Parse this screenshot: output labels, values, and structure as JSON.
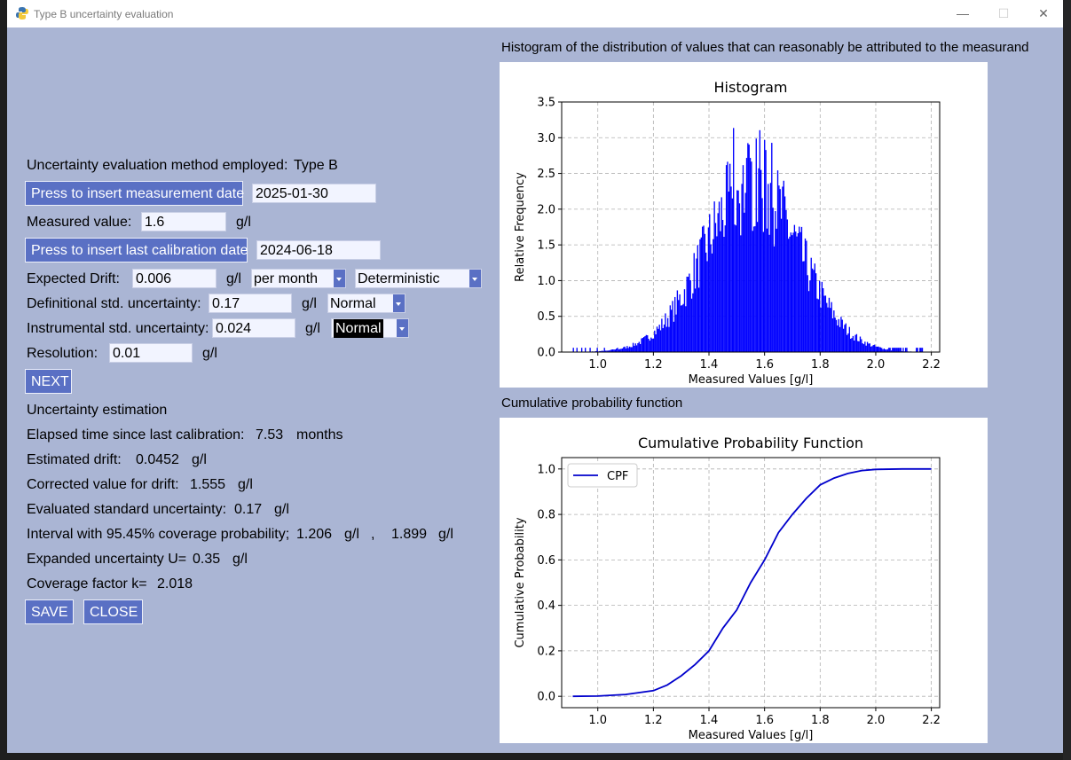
{
  "window": {
    "title": "Type B uncertainty evaluation",
    "minimize": "—",
    "maximize": "☐",
    "close": "✕"
  },
  "form": {
    "method_label": "Uncertainty evaluation method employed:",
    "method_value": "Type B",
    "meas_date_button": "Press to insert measurement date",
    "meas_date": "2025-01-30",
    "measured_value_label": "Measured value:",
    "measured_value": "1.6",
    "measured_unit": "g/l",
    "cal_date_button": "Press to insert last calibration date",
    "cal_date": "2024-06-18",
    "drift_label": "Expected Drift:",
    "drift_value": "0.006",
    "drift_unit": "g/l",
    "drift_period": "per month",
    "drift_type": "Deterministic",
    "def_label": "Definitional std. uncertainty:",
    "def_value": "0.17",
    "def_unit": "g/l",
    "def_dist": "Normal",
    "inst_label": "Instrumental std. uncertainty:",
    "inst_value": "0.024",
    "inst_unit": "g/l",
    "inst_dist": "Normal",
    "res_label": "Resolution:",
    "res_value": "0.01",
    "res_unit": "g/l",
    "next_button": "NEXT"
  },
  "results": {
    "heading": "Uncertainty estimation",
    "elapsed_label": "Elapsed time since last calibration:",
    "elapsed_value": "7.53",
    "elapsed_unit": "months",
    "drift_label": "Estimated drift:",
    "drift_value": "0.0452",
    "drift_unit": "g/l",
    "corrected_label": "Corrected value for drift:",
    "corrected_value": "1.555",
    "corrected_unit": "g/l",
    "std_label": "Evaluated standard uncertainty:",
    "std_value": "0.17",
    "std_unit": "g/l",
    "interval_label": "Interval with 95.45% coverage probability;",
    "interval_low": "1.206",
    "interval_low_unit": "g/l",
    "interval_sep": ",",
    "interval_high": "1.899",
    "interval_high_unit": "g/l",
    "expanded_label": "Expanded uncertainty U=",
    "expanded_value": "0.35",
    "expanded_unit": "g/l",
    "k_label": "Coverage factor k=",
    "k_value": "2.018",
    "save_button": "SAVE",
    "close_button": "CLOSE"
  },
  "histogram_caption": "Histogram of the distribution of values that can reasonably be attributed to the measurand",
  "cpf_caption": "Cumulative probability function",
  "colors": {
    "accent": "#5a70c4",
    "window_bg": "#aab5d4",
    "series": "#0000ff",
    "cpf_line": "#0000cc"
  },
  "chart_data": [
    {
      "type": "bar",
      "title": "Histogram",
      "xlabel": "Measured Values [g/l]",
      "ylabel": "Relative Frequency",
      "xlim": [
        0.87,
        2.23
      ],
      "ylim": [
        0,
        3.5
      ],
      "xticks": [
        "1.0",
        "1.2",
        "1.4",
        "1.6",
        "1.8",
        "2.0",
        "2.2"
      ],
      "yticks": [
        "0.0",
        "0.5",
        "1.0",
        "1.5",
        "2.0",
        "2.5",
        "3.0",
        "3.5"
      ],
      "grid": true,
      "distribution": {
        "mean": 1.555,
        "std": 0.17,
        "peak_density": 2.35,
        "min": 0.91,
        "max": 2.2,
        "max_bar": 3.4
      },
      "series": [
        {
          "values_description_only": null
        }
      ]
    },
    {
      "type": "line",
      "title": "Cumulative Probability Function",
      "xlabel": "Measured Values [g/l]",
      "ylabel": "Cumulative Probability",
      "xlim": [
        0.87,
        2.23
      ],
      "ylim": [
        -0.05,
        1.05
      ],
      "xticks": [
        "1.0",
        "1.2",
        "1.4",
        "1.6",
        "1.8",
        "2.0",
        "2.2"
      ],
      "yticks": [
        "0.0",
        "0.2",
        "0.4",
        "0.6",
        "0.8",
        "1.0"
      ],
      "grid": true,
      "legend": "top-left",
      "series": [
        {
          "name": "CPF",
          "x": [
            0.91,
            1.0,
            1.1,
            1.2,
            1.25,
            1.3,
            1.35,
            1.4,
            1.45,
            1.5,
            1.55,
            1.6,
            1.65,
            1.7,
            1.75,
            1.8,
            1.85,
            1.9,
            1.95,
            2.0,
            2.1,
            2.2
          ],
          "y": [
            0.0,
            0.001,
            0.008,
            0.025,
            0.05,
            0.09,
            0.14,
            0.2,
            0.3,
            0.38,
            0.5,
            0.6,
            0.72,
            0.8,
            0.87,
            0.93,
            0.96,
            0.98,
            0.993,
            0.998,
            1.0,
            1.0
          ]
        }
      ]
    }
  ]
}
